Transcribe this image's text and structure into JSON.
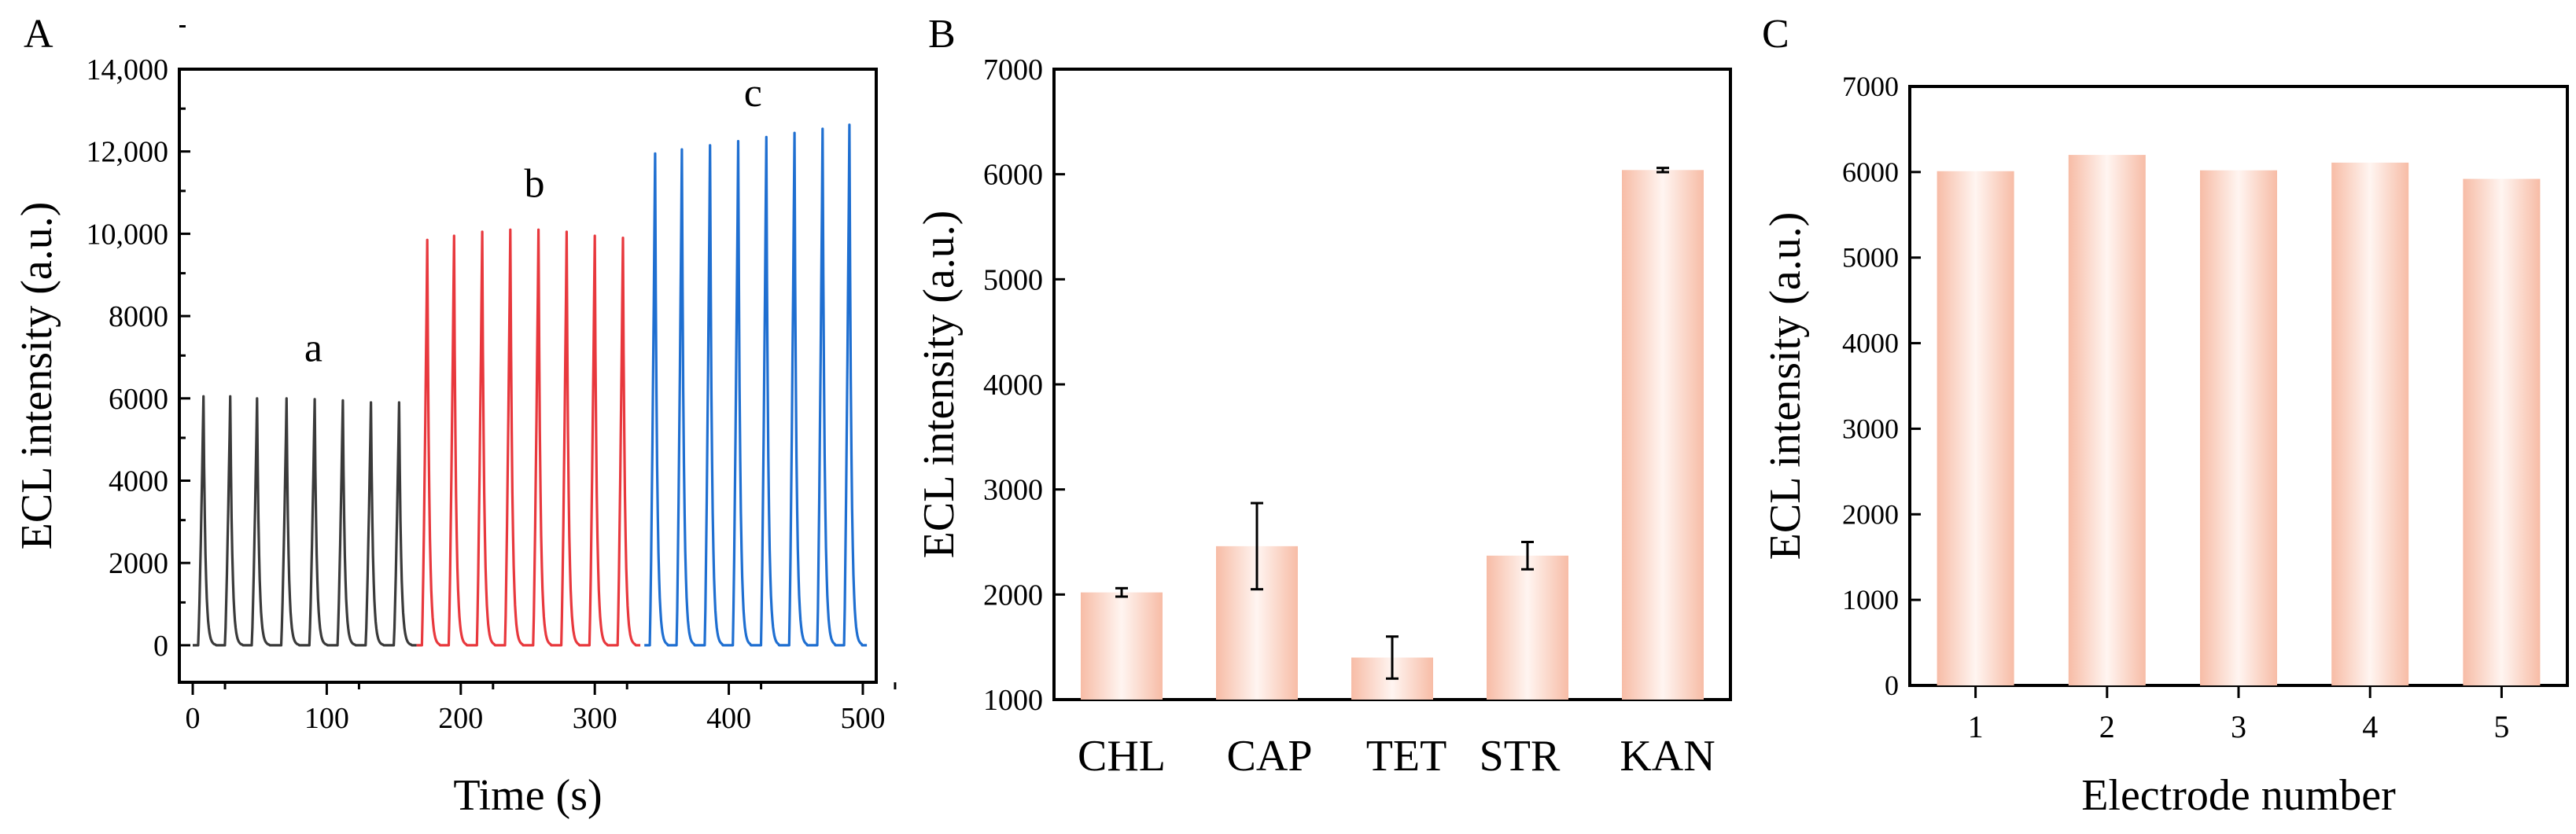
{
  "chart_data": [
    {
      "panel": "A",
      "type": "line",
      "xlabel": "Time (s)",
      "ylabel": "ECL intensity (a.u.)",
      "xlim": [
        -10,
        510
      ],
      "ylim": [
        -900,
        14000
      ],
      "xticks": [
        0,
        100,
        200,
        300,
        400,
        500
      ],
      "yticks": [
        0,
        2000,
        4000,
        6000,
        8000,
        10000,
        12000,
        14000
      ],
      "ytick_labels": [
        "0",
        "2000",
        "4000",
        "6000",
        "8000",
        "10,000",
        "12,000",
        "14,000"
      ],
      "series": [
        {
          "name": "a",
          "color": "#3a3a3a",
          "label_at": [
            90,
            6900
          ],
          "peak_times": [
            8,
            28,
            48,
            70,
            91,
            112,
            133,
            154
          ],
          "peak_values": [
            6050,
            6050,
            6000,
            6000,
            5980,
            5950,
            5900,
            5900
          ]
        },
        {
          "name": "b",
          "color": "#e8383d",
          "label_at": [
            255,
            10900
          ],
          "peak_times": [
            175,
            195,
            216,
            237,
            258,
            279,
            300,
            321
          ],
          "peak_values": [
            9850,
            9950,
            10050,
            10100,
            10100,
            10050,
            9950,
            9900
          ]
        },
        {
          "name": "c",
          "color": "#1f6fd1",
          "label_at": [
            418,
            13100
          ],
          "peak_times": [
            345,
            365,
            386,
            407,
            428,
            449,
            470,
            490
          ],
          "peak_values": [
            11950,
            12050,
            12150,
            12250,
            12350,
            12450,
            12550,
            12650
          ]
        }
      ]
    },
    {
      "panel": "B",
      "type": "bar",
      "xlabel": "",
      "ylabel": "ECL intensity (a.u.)",
      "ylim": [
        1000,
        7000
      ],
      "yticks": [
        1000,
        2000,
        3000,
        4000,
        5000,
        6000,
        7000
      ],
      "categories": [
        "CHL",
        "CAP",
        "TET",
        "STR",
        "KAN"
      ],
      "values": [
        2020,
        2460,
        1400,
        2370,
        6040
      ],
      "errors": [
        40,
        410,
        200,
        130,
        20
      ]
    },
    {
      "panel": "C",
      "type": "bar",
      "xlabel": "Electrode number",
      "ylabel": "ECL intensity (a.u.)",
      "ylim": [
        0,
        7000
      ],
      "yticks": [
        0,
        1000,
        2000,
        3000,
        4000,
        5000,
        6000,
        7000
      ],
      "categories": [
        "1",
        "2",
        "3",
        "4",
        "5"
      ],
      "values": [
        6010,
        6200,
        6020,
        6110,
        5920
      ]
    }
  ]
}
